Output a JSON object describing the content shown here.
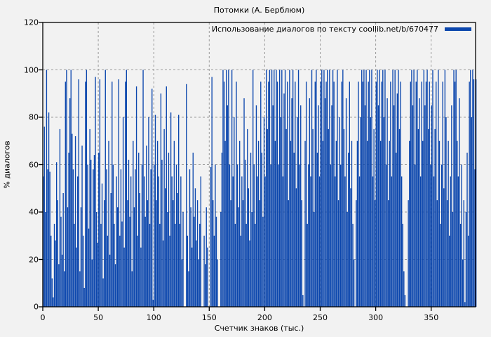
{
  "title": "Потомки (А. Берблюм)",
  "legend": {
    "label": "Использование диалогов по тексту coollib.net/b/670477"
  },
  "colors": {
    "bar": "#0b46ad",
    "background": "#f2f2f2",
    "grid": "#9a9a9a",
    "axis": "#000000",
    "text": "#000000"
  },
  "chart_data": {
    "type": "bar",
    "title": "Потомки (А. Берблюм)",
    "subtitle": "",
    "xlabel": "Счетчик знаков (тыс.)",
    "ylabel": "% диалогов",
    "legend_entries": [
      "Использование диалогов по тексту coollib.net/b/670477"
    ],
    "legend_position": "top-right-inside",
    "grid": true,
    "grid_style": "dashed",
    "xlim": [
      0,
      390
    ],
    "ylim": [
      0,
      120
    ],
    "xticks": [
      0,
      50,
      100,
      150,
      200,
      250,
      300,
      350
    ],
    "yticks": [
      0,
      20,
      40,
      60,
      80,
      100,
      120
    ],
    "x_start": 0,
    "x_step": 1,
    "values_note": "percent of dialogs per thousand characters, estimated from pixels",
    "values": [
      55,
      76,
      40,
      100,
      58,
      82,
      57,
      30,
      12,
      4,
      35,
      28,
      61,
      45,
      18,
      75,
      38,
      22,
      48,
      15,
      95,
      100,
      42,
      65,
      88,
      100,
      73,
      58,
      35,
      72,
      25,
      55,
      96,
      15,
      42,
      68,
      30,
      8,
      95,
      100,
      60,
      33,
      75,
      62,
      20,
      58,
      64,
      97,
      40,
      27,
      65,
      96,
      35,
      52,
      12,
      45,
      100,
      58,
      30,
      70,
      22,
      48,
      95,
      60,
      35,
      18,
      55,
      42,
      96,
      30,
      58,
      36,
      80,
      25,
      95,
      100,
      45,
      62,
      38,
      55,
      15,
      70,
      42,
      58,
      93,
      30,
      65,
      48,
      25,
      60,
      100,
      55,
      38,
      68,
      45,
      80,
      35,
      58,
      92,
      3,
      60,
      81,
      45,
      70,
      55,
      35,
      90,
      62,
      28,
      75,
      50,
      93,
      40,
      65,
      30,
      82,
      55,
      45,
      70,
      35,
      60,
      48,
      81,
      35,
      55,
      20,
      40,
      0,
      0,
      94,
      30,
      15,
      58,
      42,
      25,
      65,
      38,
      50,
      28,
      45,
      20,
      35,
      55,
      0,
      0,
      30,
      18,
      42,
      25,
      0,
      0,
      59,
      97,
      45,
      30,
      60,
      38,
      20,
      0,
      0,
      40,
      65,
      100,
      95,
      70,
      100,
      85,
      100,
      60,
      45,
      100,
      55,
      80,
      35,
      95,
      60,
      42,
      70,
      30,
      55,
      45,
      88,
      62,
      35,
      75,
      50,
      28,
      65,
      40,
      100,
      60,
      35,
      85,
      55,
      70,
      45,
      95,
      65,
      38,
      80,
      55,
      100,
      75,
      95,
      100,
      60,
      100,
      85,
      100,
      70,
      100,
      95,
      60,
      100,
      80,
      100,
      55,
      90,
      100,
      75,
      95,
      45,
      100,
      70,
      88,
      100,
      65,
      95,
      50,
      80,
      100,
      60,
      85,
      45,
      5,
      0,
      70,
      95,
      35,
      60,
      88,
      55,
      100,
      75,
      40,
      95,
      100,
      65,
      85,
      55,
      95,
      100,
      70,
      100,
      88,
      95,
      100,
      75,
      100,
      60,
      85,
      100,
      95,
      55,
      70,
      100,
      45,
      80,
      60,
      95,
      100,
      75,
      55,
      88,
      40,
      65,
      95,
      50,
      70,
      35,
      20,
      0,
      45,
      70,
      95,
      55,
      80,
      100,
      95,
      100,
      85,
      100,
      70,
      95,
      100,
      80,
      100,
      55,
      75,
      45,
      95,
      100,
      85,
      100,
      70,
      95,
      100,
      80,
      100,
      60,
      88,
      45,
      70,
      95,
      55,
      100,
      85,
      100,
      65,
      90,
      100,
      75,
      95,
      55,
      35,
      15,
      5,
      0,
      0,
      45,
      70,
      95,
      100,
      85,
      100,
      60,
      95,
      100,
      75,
      88,
      55,
      95,
      70,
      100,
      85,
      95,
      100,
      75,
      95,
      60,
      85,
      100,
      55,
      75,
      95,
      45,
      100,
      70,
      35,
      60,
      95,
      50,
      100,
      80,
      45,
      70,
      30,
      55,
      85,
      40,
      100,
      95,
      100,
      70,
      55,
      88,
      35,
      60,
      20,
      45,
      2,
      40,
      65,
      30,
      95,
      100,
      80,
      100,
      96,
      58,
      96
    ]
  }
}
